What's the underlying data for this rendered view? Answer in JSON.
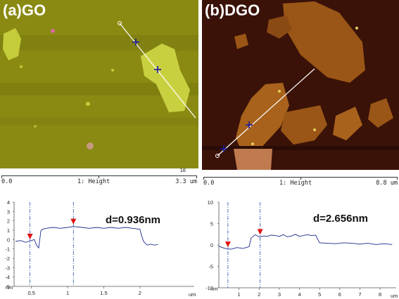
{
  "panels": [
    {
      "label": "(a)GO",
      "scale_bar": {
        "left": "0.0",
        "middle": "1: Height",
        "right": "3.3 um",
        "superscript": "10"
      },
      "annotation": "d=0.936nm",
      "colors": {
        "background": "#8a8a10",
        "flake": "#c8d040"
      }
    },
    {
      "label": "(b)DGO",
      "scale_bar": {
        "left": "0.0",
        "middle": "1: Height",
        "right": "8.8 um",
        "superscript": ""
      },
      "annotation": "d=2.656nm",
      "colors": {
        "background": "#3a1208",
        "flake": "#a8621c"
      }
    }
  ],
  "chart_data": [
    {
      "type": "line",
      "title": "",
      "xlabel": "um",
      "ylabel": "nm",
      "x_tick_labels": [
        "0.5",
        "1",
        "1.5",
        "2"
      ],
      "y_tick_labels": [
        "4",
        "3",
        "2",
        "1",
        "0",
        "-1",
        "-2",
        "-3",
        "-4",
        "-5"
      ],
      "xlim": [
        0.26,
        2.75
      ],
      "ylim": [
        -5,
        4
      ],
      "markers_x": [
        0.48,
        1.08
      ],
      "series": [
        {
          "x": [
            0.28,
            0.35,
            0.42,
            0.46,
            0.5,
            0.54,
            0.57,
            0.6,
            0.63,
            0.65,
            0.7,
            0.8,
            0.9,
            1.0,
            1.08,
            1.2,
            1.3,
            1.4,
            1.5,
            1.6,
            1.7,
            1.8,
            1.9,
            2.0,
            2.02,
            2.05,
            2.1,
            2.15,
            2.2,
            2.25
          ],
          "y": [
            -0.2,
            -0.1,
            -0.3,
            -0.2,
            -0.1,
            0.0,
            -0.6,
            -0.9,
            0.9,
            1.1,
            1.2,
            1.3,
            1.2,
            1.3,
            1.4,
            1.3,
            1.2,
            1.3,
            1.2,
            1.3,
            1.2,
            1.3,
            1.2,
            1.1,
            0.5,
            -0.2,
            -0.6,
            -0.5,
            -0.6,
            -0.5
          ]
        }
      ]
    },
    {
      "type": "line",
      "title": "",
      "xlabel": "um",
      "ylabel": "nm",
      "x_tick_labels": [
        "1",
        "2",
        "3",
        "4",
        "5",
        "6",
        "7",
        "8"
      ],
      "y_tick_labels": [
        "10",
        "5",
        "0",
        "-5",
        "-10"
      ],
      "xlim": [
        0,
        8.8
      ],
      "ylim": [
        -10,
        10
      ],
      "markers_x": [
        0.45,
        2.05
      ],
      "series": [
        {
          "x": [
            0.0,
            0.3,
            0.6,
            0.9,
            1.2,
            1.5,
            1.6,
            1.8,
            2.0,
            2.2,
            2.4,
            2.6,
            2.8,
            3.0,
            3.2,
            3.4,
            3.6,
            3.8,
            4.0,
            4.2,
            4.4,
            4.6,
            4.8,
            5.0,
            5.4,
            5.8,
            6.2,
            6.6,
            7.0,
            7.4,
            7.8,
            8.2,
            8.6
          ],
          "y": [
            -0.3,
            -0.8,
            -1.0,
            -0.6,
            -0.8,
            -0.4,
            1.6,
            2.4,
            1.9,
            2.1,
            2.0,
            2.3,
            2.2,
            2.0,
            2.4,
            1.9,
            2.1,
            2.5,
            2.0,
            2.2,
            2.4,
            2.2,
            2.3,
            0.5,
            0.4,
            0.3,
            0.5,
            0.4,
            0.2,
            0.4,
            0.1,
            0.3,
            0.1
          ]
        }
      ]
    }
  ]
}
